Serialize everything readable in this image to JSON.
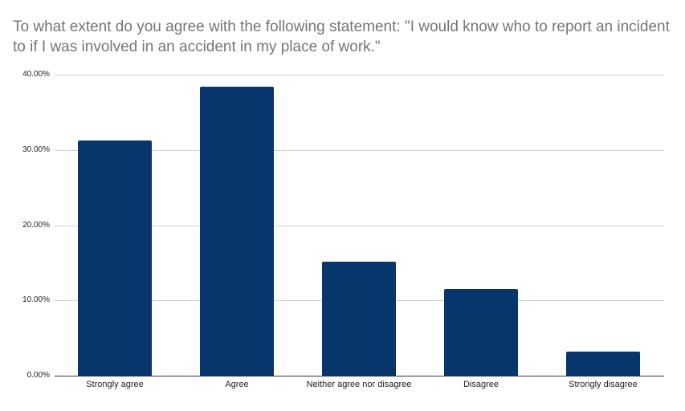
{
  "chart_data": {
    "type": "bar",
    "title": "To what extent do you agree with the following statement: \"I would know who to report an incident to if I was involved in an accident in my place of work.\"",
    "xlabel": "",
    "ylabel": "",
    "categories": [
      "Strongly agree",
      "Agree",
      "Neither agree nor disagree",
      "Disagree",
      "Strongly disagree"
    ],
    "values": [
      31.25,
      38.4,
      15.1,
      11.5,
      3.2
    ],
    "value_format": "percent",
    "ylim": [
      0,
      40
    ],
    "yticks": [
      "0.00%",
      "10.00%",
      "20.00%",
      "30.00%",
      "40.00%"
    ],
    "grid": true,
    "legend": "none",
    "bar_color": "#06366B"
  }
}
